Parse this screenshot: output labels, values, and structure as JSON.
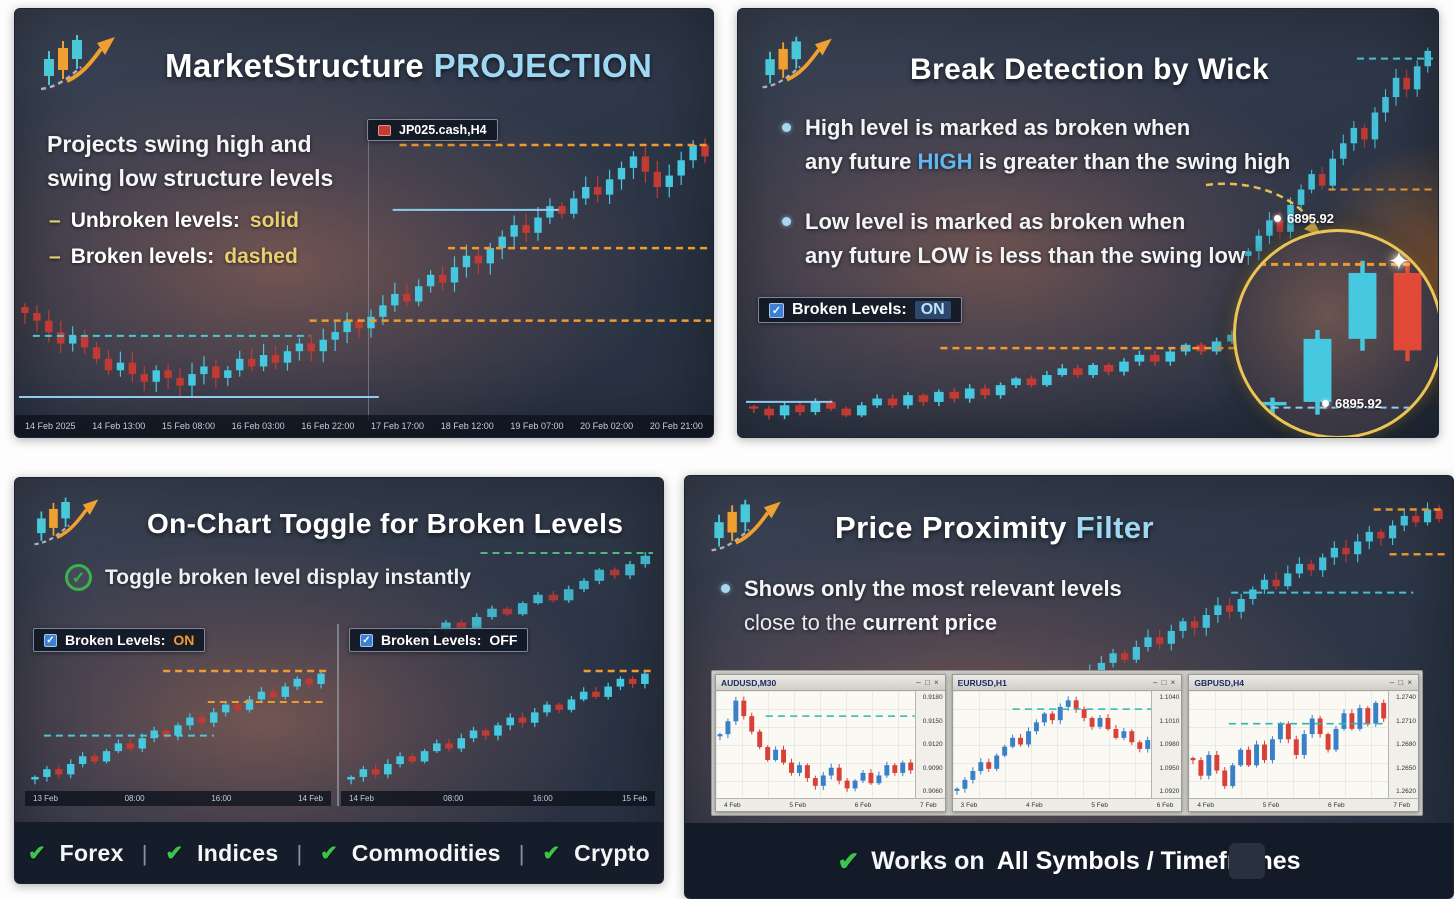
{
  "glyphs": {
    "check": "✔",
    "checkmark": "✓",
    "dash": "–",
    "sep": "|",
    "burst": "✦",
    "controls": "– □ ×"
  },
  "p1": {
    "title_main": "MarketStructure",
    "title_accent": "PROJECTION",
    "desc1": "Projects swing high and",
    "desc2": "swing low structure levels",
    "bullets": [
      {
        "label": "Unbroken levels:",
        "value": "solid"
      },
      {
        "label": "Broken levels:",
        "value": "dashed"
      }
    ]
  },
  "p2": {
    "title": "Break Detection by Wick",
    "b1_l1": "High level is marked as broken when",
    "b1_l2a": "any future ",
    "b1_l2b": "HIGH",
    "b1_l2c": " is greater than the swing high",
    "b2_l1": "Low level is marked as broken when",
    "b2_l2": "any future LOW is less than the swing low",
    "toggle_label": "Broken Levels:",
    "toggle_state": "ON",
    "price_label": "6895.92",
    "zoom_price": "6895.92"
  },
  "p3": {
    "title": "On-Chart Toggle for Broken Levels",
    "check_text": "Toggle broken level display instantly",
    "on_label": "Broken Levels:",
    "on_state": "ON",
    "off_label": "Broken Levels:",
    "off_state": "OFF",
    "assets": [
      "Forex",
      "Indices",
      "Commodities",
      "Crypto"
    ]
  },
  "p4": {
    "title_main": "Price Proximity",
    "title_accent": "Filter",
    "b_l1": "Shows only the most relevant levels",
    "b_l2a": "close to the ",
    "b_l2b": "current price",
    "windows": [
      {
        "title": "AUDUSD,M30"
      },
      {
        "title": "EURUSD,H1"
      },
      {
        "title": "GBPUSD,H4"
      }
    ],
    "bar_seg1": "Works on",
    "bar_seg2": "All Symbols / Timeframes"
  },
  "chart_data": [
    {
      "id": "p1-main",
      "type": "candlestick",
      "symbol": "JP025.cash,H4",
      "bull": "#46c8e0",
      "bear": "#c23a34",
      "closes": [
        46,
        44,
        41,
        38,
        40,
        37,
        34,
        31,
        33,
        30,
        28,
        31,
        29,
        27,
        30,
        32,
        29,
        31,
        34,
        32,
        35,
        33,
        36,
        38,
        36,
        39,
        41,
        44,
        42,
        45,
        48,
        51,
        49,
        53,
        56,
        54,
        58,
        61,
        59,
        63,
        66,
        69,
        67,
        71,
        74,
        72,
        76,
        79,
        77,
        81,
        84,
        87,
        83,
        79,
        82,
        86,
        90,
        87
      ],
      "levels": [
        {
          "v": 90,
          "x0": 0.55,
          "x1": 1,
          "color": "#f09a30",
          "dash": true,
          "w": 2.5
        },
        {
          "v": 63,
          "x0": 0.62,
          "x1": 1,
          "color": "#f09a30",
          "dash": true,
          "w": 2.5
        },
        {
          "v": 44,
          "x0": 0.42,
          "x1": 1,
          "color": "#f09a30",
          "dash": true,
          "w": 2.5
        },
        {
          "v": 40,
          "x0": 0.02,
          "x1": 0.42,
          "color": "#49c8d8",
          "dash": true,
          "w": 2
        },
        {
          "v": 73,
          "x0": 0.54,
          "x1": 0.78,
          "color": "#8ecbee",
          "dash": false,
          "w": 2
        },
        {
          "v": 24,
          "x0": 0,
          "x1": 0.52,
          "color": "#8ecbee",
          "dash": false,
          "w": 2
        }
      ],
      "vlines": [
        0.505
      ],
      "xticks": [
        "14 Feb 2025",
        "14 Feb 13:00",
        "15 Feb 08:00",
        "16 Feb 03:00",
        "16 Feb 22:00",
        "17 Feb 17:00",
        "18 Feb 12:00",
        "19 Feb 07:00",
        "20 Feb 02:00",
        "20 Feb 21:00"
      ]
    },
    {
      "id": "p2-main",
      "type": "candlestick",
      "bull": "#46c8e0",
      "bear": "#c23a34",
      "closes": [
        32,
        30,
        33,
        31,
        34,
        32,
        30,
        33,
        35,
        33,
        36,
        34,
        37,
        35,
        38,
        36,
        39,
        41,
        39,
        42,
        44,
        42,
        45,
        43,
        46,
        48,
        46,
        49,
        51,
        49,
        52,
        54,
        52,
        55,
        57
      ],
      "levels": [
        {
          "v": 50,
          "x0": 0.36,
          "x1": 1,
          "color": "#f09a30",
          "dash": true,
          "w": 2.5
        },
        {
          "v": 34,
          "x0": 0,
          "x1": 0.16,
          "color": "#8ecbee",
          "dash": false,
          "w": 2
        }
      ]
    },
    {
      "id": "p2-backdrop",
      "type": "candlestick",
      "bull": "#46c8e0",
      "bear": "#c23a34",
      "closes": [
        40,
        44,
        48,
        45,
        52,
        56,
        60,
        57,
        64,
        68,
        72,
        69,
        76,
        80,
        85,
        82,
        88,
        92
      ],
      "levels": [
        {
          "v": 90,
          "x0": 0.6,
          "x1": 1,
          "color": "#49c8d8",
          "dash": true,
          "w": 2
        },
        {
          "v": 56,
          "x0": 0.45,
          "x1": 1,
          "color": "#f09a30",
          "dash": true,
          "w": 2
        }
      ]
    },
    {
      "id": "p2-zoom",
      "type": "candlestick",
      "bull": "#46c8e0",
      "bear": "#e04838",
      "wick": 0.05,
      "closes": [
        40,
        62,
        85,
        58
      ],
      "levels": [
        {
          "v": 88,
          "x0": 0.05,
          "x1": 0.95,
          "color": "#f09a30",
          "dash": true,
          "w": 3
        },
        {
          "v": 38,
          "x0": 0.12,
          "x1": 1,
          "color": "#8ecbee",
          "dash": true,
          "w": 2
        }
      ]
    },
    {
      "id": "p3-backdrop",
      "type": "candlestick",
      "bull": "#46c8e0",
      "bear": "#c23a34",
      "closes": [
        40,
        43,
        41,
        45,
        48,
        46,
        50,
        53,
        51,
        55,
        58,
        62,
        60,
        64,
        67
      ],
      "levels": [
        {
          "v": 68,
          "x0": 0.25,
          "x1": 1,
          "color": "#58d080",
          "dash": true,
          "w": 2
        }
      ]
    },
    {
      "id": "p3-on",
      "type": "candlestick",
      "bull": "#46c8e0",
      "bear": "#c23a34",
      "closes": [
        30,
        33,
        31,
        35,
        38,
        36,
        40,
        43,
        41,
        45,
        48,
        46,
        50,
        53,
        51,
        55,
        58,
        56,
        60,
        63,
        61,
        65,
        68,
        66,
        70
      ],
      "levels": [
        {
          "v": 71,
          "x0": 0.45,
          "x1": 1,
          "color": "#f09a30",
          "dash": true,
          "w": 2.5
        },
        {
          "v": 59,
          "x0": 0.6,
          "x1": 1,
          "color": "#f09a30",
          "dash": true,
          "w": 2
        },
        {
          "v": 46,
          "x0": 0.05,
          "x1": 0.62,
          "color": "#49c8d8",
          "dash": true,
          "w": 2
        }
      ],
      "xticks": [
        "13 Feb",
        "08:00",
        "16:00",
        "14 Feb"
      ]
    },
    {
      "id": "p3-off",
      "type": "candlestick",
      "bull": "#46c8e0",
      "bear": "#c23a34",
      "closes": [
        30,
        33,
        31,
        35,
        38,
        36,
        40,
        43,
        41,
        45,
        48,
        46,
        50,
        53,
        51,
        55,
        58,
        56,
        60,
        63,
        61,
        65,
        68,
        66,
        70
      ],
      "levels": [
        {
          "v": 71,
          "x0": 0.78,
          "x1": 1,
          "color": "#f09a30",
          "dash": true,
          "w": 2.5
        }
      ],
      "xticks": [
        "14 Feb",
        "08:00",
        "16:00",
        "15 Feb"
      ]
    },
    {
      "id": "p4-backdrop",
      "type": "candlestick",
      "bull": "#46c8e0",
      "bear": "#c23a34",
      "closes": [
        30,
        33,
        31,
        35,
        38,
        41,
        39,
        43,
        46,
        44,
        48,
        51,
        49,
        53,
        56,
        54,
        58,
        61,
        64,
        62,
        66,
        69,
        67,
        71,
        74,
        72,
        76,
        79,
        77,
        81,
        84,
        82,
        86,
        83
      ],
      "levels": [
        {
          "v": 86,
          "x0": 0.82,
          "x1": 1,
          "color": "#f09a30",
          "dash": true,
          "w": 2.5
        },
        {
          "v": 72,
          "x0": 0.86,
          "x1": 1,
          "color": "#f09a30",
          "dash": true,
          "w": 2.5
        },
        {
          "v": 60,
          "x0": 0.46,
          "x1": 0.92,
          "color": "#49c8d8",
          "dash": true,
          "w": 2
        }
      ]
    },
    {
      "id": "p4-win1",
      "type": "candlestick",
      "bull": "#3a80c8",
      "bear": "#d84038",
      "closes": [
        55,
        60,
        68,
        62,
        56,
        50,
        45,
        49,
        44,
        40,
        43,
        38,
        35,
        39,
        42,
        37,
        34,
        37,
        40,
        36,
        39,
        43,
        40,
        44,
        41
      ],
      "levels": [
        {
          "v": 62,
          "x0": 0.25,
          "x1": 1,
          "color": "#2ab8b0",
          "dash": true,
          "w": 1.5
        }
      ],
      "yticks": [
        "0.9180",
        "0.9150",
        "0.9120",
        "0.9090",
        "0.9060"
      ],
      "xticks": [
        "4 Feb",
        "5 Feb",
        "6 Feb",
        "7 Feb"
      ]
    },
    {
      "id": "p4-win2",
      "type": "candlestick",
      "bull": "#3a80c8",
      "bear": "#d84038",
      "closes": [
        30,
        34,
        38,
        42,
        39,
        45,
        49,
        53,
        50,
        56,
        60,
        64,
        61,
        67,
        70,
        66,
        62,
        58,
        62,
        57,
        53,
        56,
        51,
        48,
        52
      ],
      "levels": [
        {
          "v": 66,
          "x0": 0.3,
          "x1": 1,
          "color": "#2ab8b0",
          "dash": true,
          "w": 1.5
        }
      ],
      "yticks": [
        "1.1040",
        "1.1010",
        "1.0980",
        "1.0950",
        "1.0920"
      ],
      "xticks": [
        "3 Feb",
        "4 Feb",
        "5 Feb",
        "6 Feb"
      ]
    },
    {
      "id": "p4-win3",
      "type": "candlestick",
      "bull": "#3a80c8",
      "bear": "#d84038",
      "closes": [
        40,
        37,
        41,
        38,
        35,
        39,
        42,
        39,
        43,
        40,
        44,
        47,
        44,
        41,
        45,
        48,
        45,
        42,
        46,
        49,
        46,
        50,
        47,
        51,
        48
      ],
      "levels": [
        {
          "v": 47,
          "x0": 0.2,
          "x1": 1,
          "color": "#2ab8b0",
          "dash": true,
          "w": 1.5
        }
      ],
      "yticks": [
        "1.2740",
        "1.2710",
        "1.2680",
        "1.2650",
        "1.2620"
      ],
      "xticks": [
        "4 Feb",
        "5 Feb",
        "6 Feb",
        "7 Feb"
      ]
    }
  ]
}
